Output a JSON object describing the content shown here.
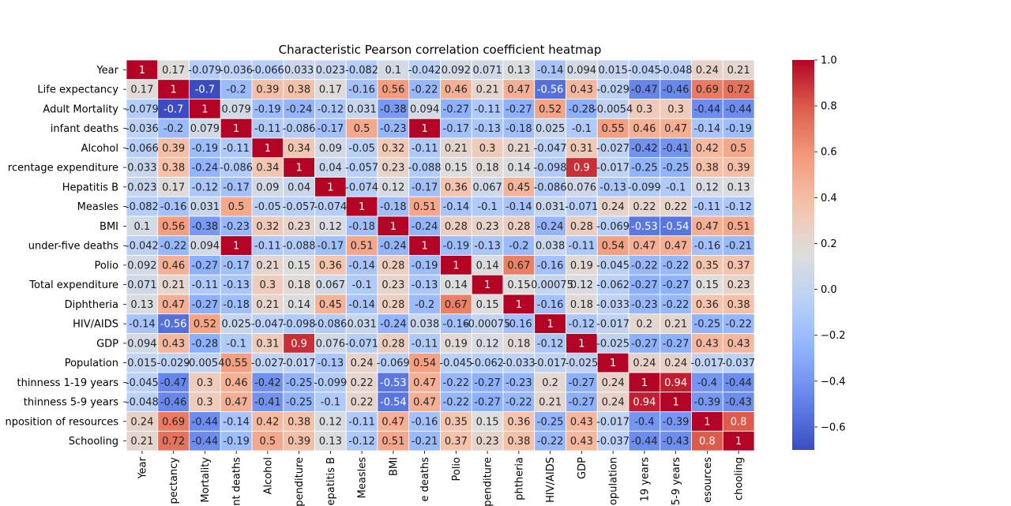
{
  "chart_data": {
    "type": "heatmap",
    "title": "Characteristic Pearson correlation coefficient heatmap",
    "row_labels": [
      "Year",
      "Life expectancy",
      "Adult Mortality",
      "infant deaths",
      "Alcohol",
      "rcentage expenditure",
      "Hepatitis B",
      "Measles",
      "BMI",
      "under-five deaths",
      "Polio",
      "Total expenditure",
      "Diphtheria",
      "HIV/AIDS",
      "GDP",
      "Population",
      "thinness 1-19 years",
      "thinness 5-9 years",
      "nposition of resources",
      "Schooling"
    ],
    "col_labels": [
      "Year",
      "pectancy",
      "Mortality",
      "nt deaths",
      "Alcohol",
      "penditure",
      "epatitis B",
      "Measles",
      "BMI",
      "e deaths",
      "Polio",
      "penditure",
      "phtheria",
      "HIV/AIDS",
      "GDP",
      "opulation",
      "19 years",
      "5-9 years",
      "esources",
      "chooling"
    ],
    "values": [
      [
        1,
        0.17,
        -0.079,
        -0.036,
        -0.066,
        0.033,
        0.023,
        -0.082,
        0.1,
        -0.042,
        0.092,
        0.071,
        0.13,
        -0.14,
        0.094,
        0.015,
        -0.045,
        -0.048,
        0.24,
        0.21
      ],
      [
        0.17,
        1,
        -0.7,
        -0.2,
        0.39,
        0.38,
        0.17,
        -0.16,
        0.56,
        -0.22,
        0.46,
        0.21,
        0.47,
        -0.56,
        0.43,
        -0.029,
        -0.47,
        -0.46,
        0.69,
        0.72
      ],
      [
        -0.079,
        -0.7,
        1,
        0.079,
        -0.19,
        -0.24,
        -0.12,
        0.031,
        -0.38,
        0.094,
        -0.27,
        -0.11,
        -0.27,
        0.52,
        -0.28,
        -0.0054,
        0.3,
        0.3,
        -0.44,
        -0.44
      ],
      [
        -0.036,
        -0.2,
        0.079,
        1,
        -0.11,
        -0.086,
        -0.17,
        0.5,
        -0.23,
        1,
        -0.17,
        -0.13,
        -0.18,
        0.025,
        -0.1,
        0.55,
        0.46,
        0.47,
        -0.14,
        -0.19
      ],
      [
        -0.066,
        0.39,
        -0.19,
        -0.11,
        1,
        0.34,
        0.09,
        -0.05,
        0.32,
        -0.11,
        0.21,
        0.3,
        0.21,
        -0.047,
        0.31,
        -0.027,
        -0.42,
        -0.41,
        0.42,
        0.5
      ],
      [
        0.033,
        0.38,
        -0.24,
        -0.086,
        0.34,
        1,
        0.04,
        -0.057,
        0.23,
        -0.088,
        0.15,
        0.18,
        0.14,
        -0.098,
        0.9,
        -0.017,
        -0.25,
        -0.25,
        0.38,
        0.39
      ],
      [
        0.023,
        0.17,
        -0.12,
        -0.17,
        0.09,
        0.04,
        1,
        -0.074,
        0.12,
        -0.17,
        0.36,
        0.067,
        0.45,
        -0.086,
        0.076,
        -0.13,
        -0.099,
        -0.1,
        0.12,
        0.13
      ],
      [
        -0.082,
        -0.16,
        0.031,
        0.5,
        -0.05,
        -0.057,
        -0.074,
        1,
        -0.18,
        0.51,
        -0.14,
        -0.1,
        -0.14,
        0.031,
        -0.071,
        0.24,
        0.22,
        0.22,
        -0.11,
        -0.12
      ],
      [
        0.1,
        0.56,
        -0.38,
        -0.23,
        0.32,
        0.23,
        0.12,
        -0.18,
        1,
        -0.24,
        0.28,
        0.23,
        0.28,
        -0.24,
        0.28,
        -0.069,
        -0.53,
        -0.54,
        0.47,
        0.51
      ],
      [
        -0.042,
        -0.22,
        0.094,
        1,
        -0.11,
        -0.088,
        -0.17,
        0.51,
        -0.24,
        1,
        -0.19,
        -0.13,
        -0.2,
        0.038,
        -0.11,
        0.54,
        0.47,
        0.47,
        -0.16,
        -0.21
      ],
      [
        0.092,
        0.46,
        -0.27,
        -0.17,
        0.21,
        0.15,
        0.36,
        -0.14,
        0.28,
        -0.19,
        1,
        0.14,
        0.67,
        -0.16,
        0.19,
        -0.045,
        -0.22,
        -0.22,
        0.35,
        0.37
      ],
      [
        0.071,
        0.21,
        -0.11,
        -0.13,
        0.3,
        0.18,
        0.067,
        -0.1,
        0.23,
        -0.13,
        0.14,
        1,
        0.15,
        -0.00075,
        0.12,
        -0.062,
        -0.27,
        -0.27,
        0.15,
        0.23
      ],
      [
        0.13,
        0.47,
        -0.27,
        -0.18,
        0.21,
        0.14,
        0.45,
        -0.14,
        0.28,
        -0.2,
        0.67,
        0.15,
        1,
        -0.16,
        0.18,
        -0.033,
        -0.23,
        -0.22,
        0.36,
        0.38
      ],
      [
        -0.14,
        -0.56,
        0.52,
        0.025,
        -0.047,
        -0.098,
        -0.086,
        0.031,
        -0.24,
        0.038,
        -0.16,
        -0.00075,
        -0.16,
        1,
        -0.12,
        -0.017,
        0.2,
        0.21,
        -0.25,
        -0.22
      ],
      [
        0.094,
        0.43,
        -0.28,
        -0.1,
        0.31,
        0.9,
        0.076,
        -0.071,
        0.28,
        -0.11,
        0.19,
        0.12,
        0.18,
        -0.12,
        1,
        -0.025,
        -0.27,
        -0.27,
        0.43,
        0.43
      ],
      [
        0.015,
        -0.029,
        -0.0054,
        0.55,
        -0.027,
        -0.017,
        -0.13,
        0.24,
        -0.069,
        0.54,
        -0.045,
        -0.062,
        -0.033,
        -0.017,
        -0.025,
        1,
        0.24,
        0.24,
        -0.017,
        -0.037
      ],
      [
        -0.045,
        -0.47,
        0.3,
        0.46,
        -0.42,
        -0.25,
        -0.099,
        0.22,
        -0.53,
        0.47,
        -0.22,
        -0.27,
        -0.23,
        0.2,
        -0.27,
        0.24,
        1,
        0.94,
        -0.4,
        -0.44
      ],
      [
        -0.048,
        -0.46,
        0.3,
        0.47,
        -0.41,
        -0.25,
        -0.1,
        0.22,
        -0.54,
        0.47,
        -0.22,
        -0.27,
        -0.22,
        0.21,
        -0.27,
        0.24,
        0.94,
        1,
        -0.39,
        -0.43
      ],
      [
        0.24,
        0.69,
        -0.44,
        -0.14,
        0.42,
        0.38,
        0.12,
        -0.11,
        0.47,
        -0.16,
        0.35,
        0.15,
        0.36,
        -0.25,
        0.43,
        -0.017,
        -0.4,
        -0.39,
        1,
        0.8
      ],
      [
        0.21,
        0.72,
        -0.44,
        -0.19,
        0.5,
        0.39,
        0.13,
        -0.12,
        0.51,
        -0.21,
        0.37,
        0.23,
        0.38,
        -0.22,
        0.43,
        -0.037,
        -0.44,
        -0.43,
        0.8,
        1
      ]
    ],
    "colormap": "coolwarm",
    "vmin": -0.7,
    "vmax": 1.0,
    "colorbar_ticks": [
      "1.0",
      "0.8",
      "0.6",
      "0.4",
      "0.2",
      "0.0",
      "−0.2",
      "−0.4",
      "−0.6"
    ],
    "colorbar_tick_values": [
      1.0,
      0.8,
      0.6,
      0.4,
      0.2,
      0.0,
      -0.2,
      -0.4,
      -0.6
    ],
    "annotated": true,
    "grid": false
  }
}
